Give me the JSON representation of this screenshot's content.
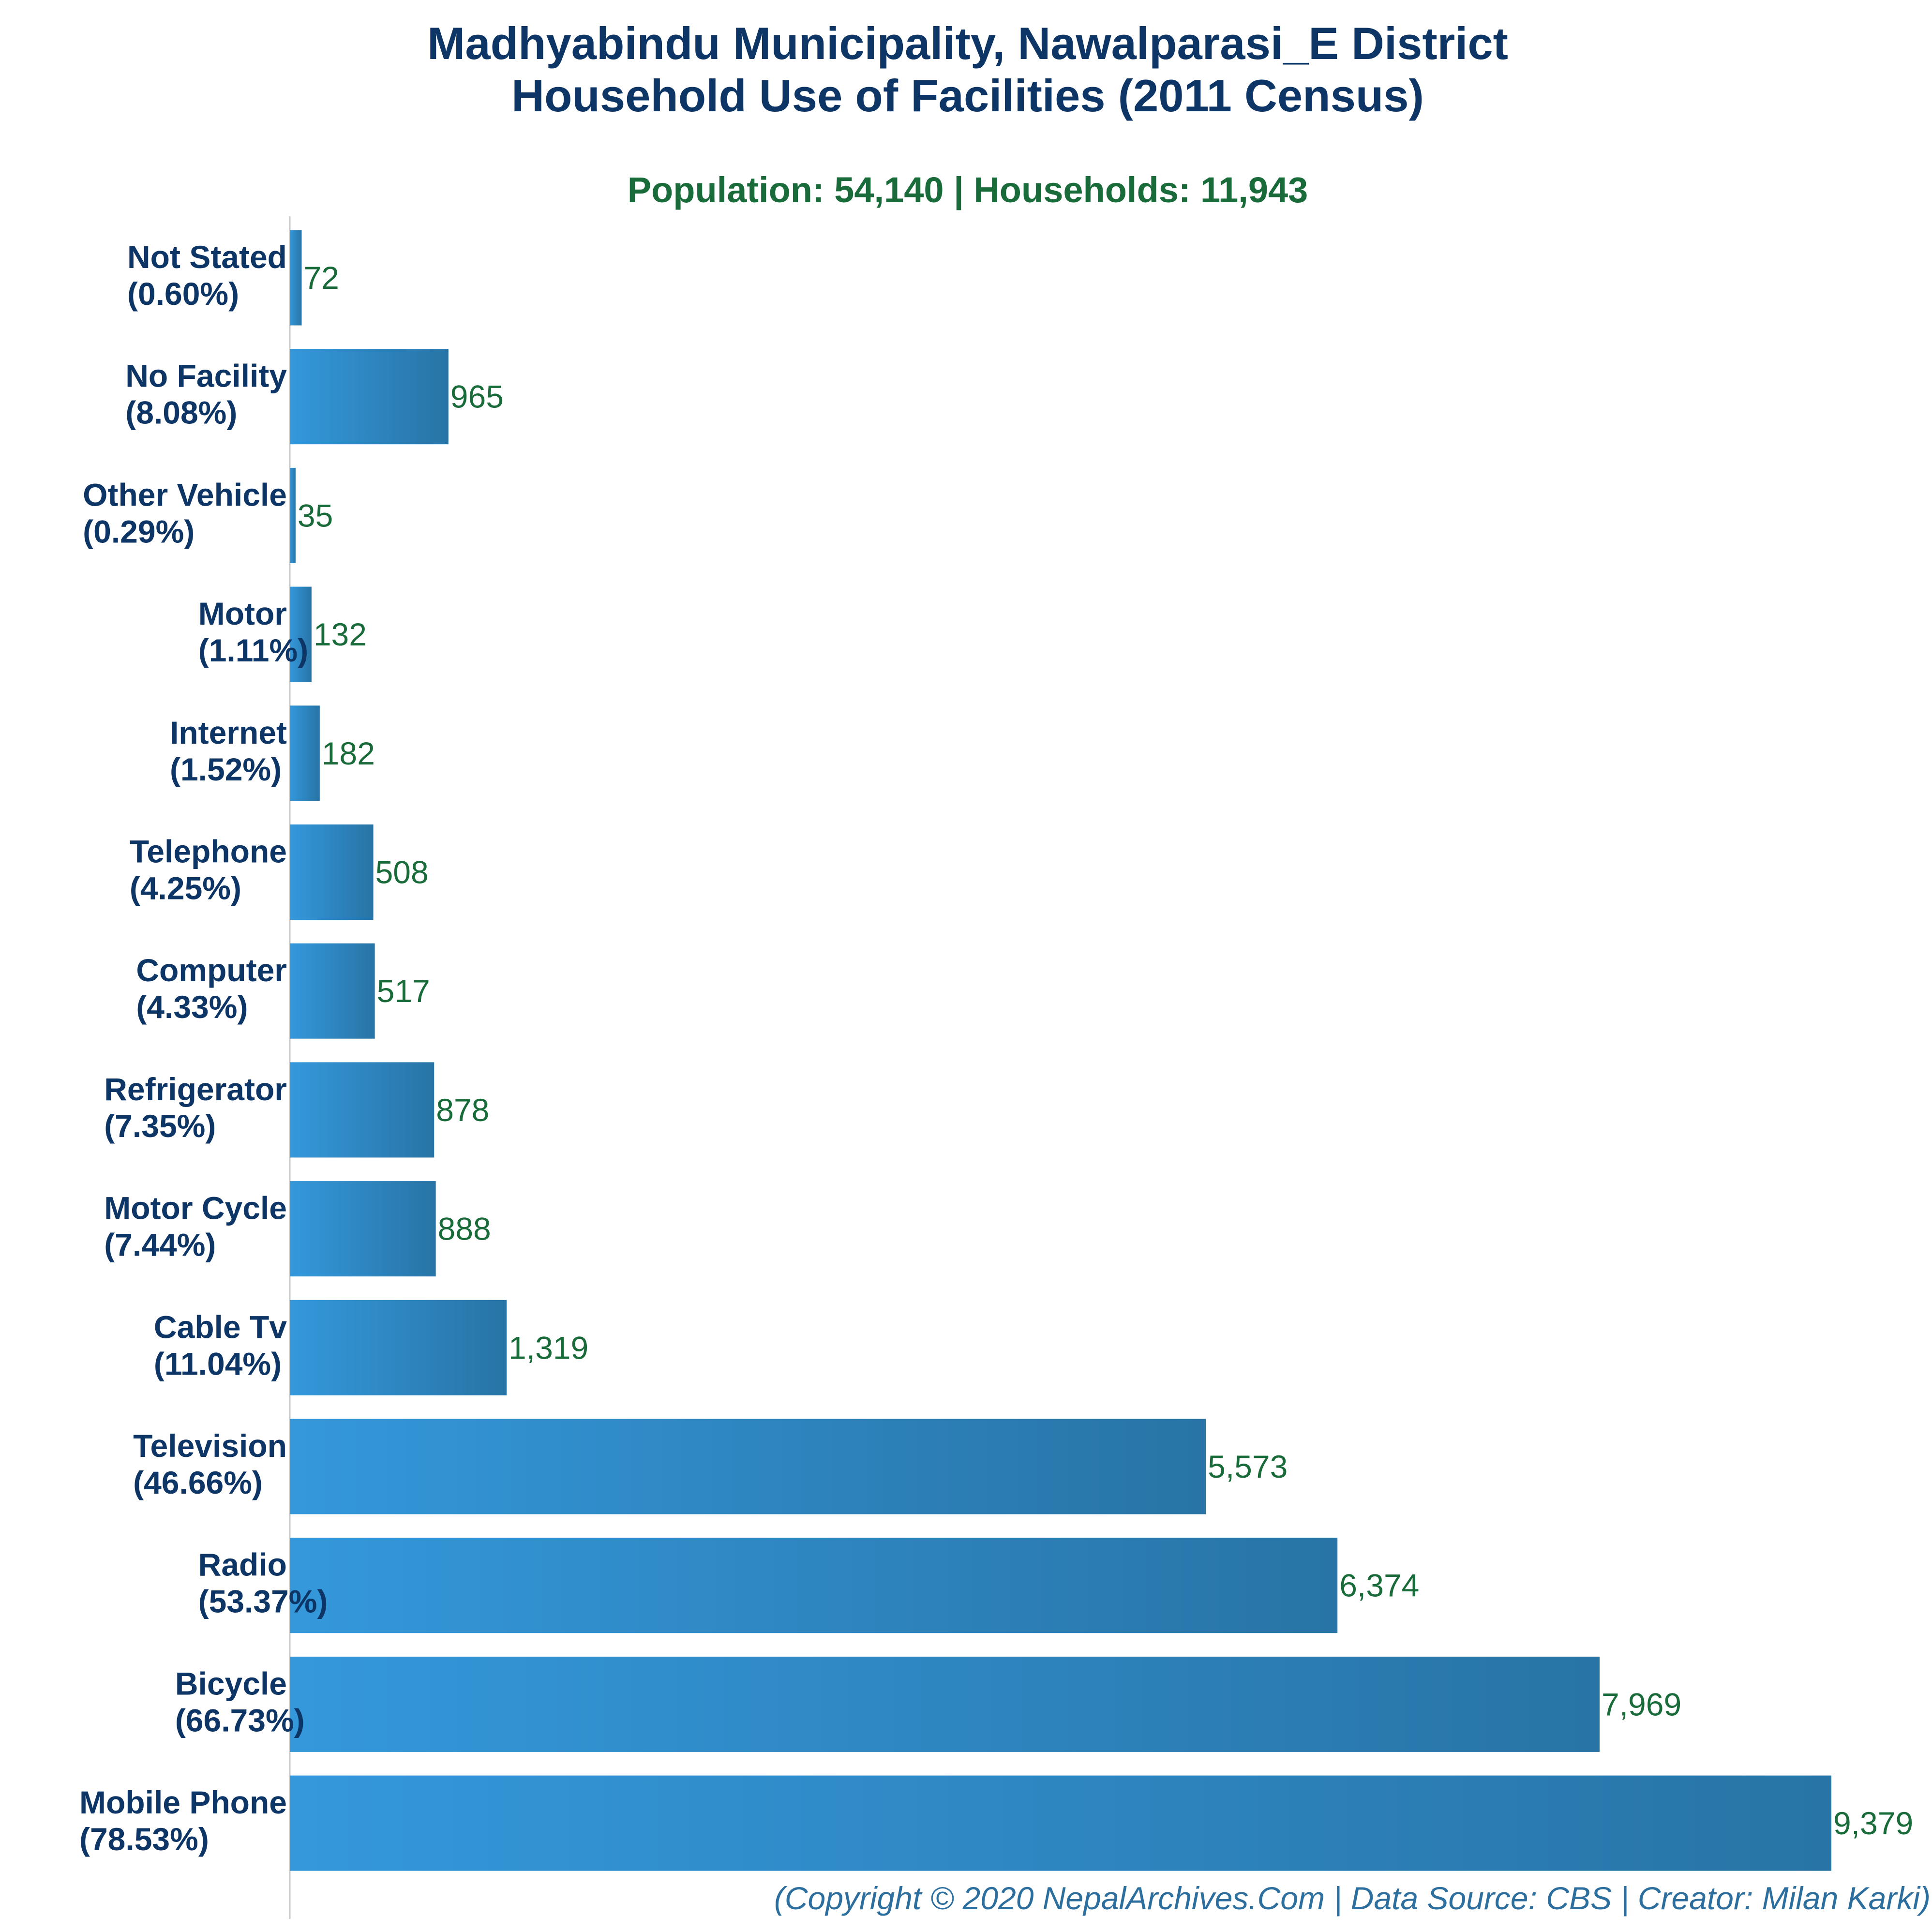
{
  "chart_data": {
    "type": "bar",
    "orientation": "horizontal",
    "title_line1": "Madhyabindu Municipality, Nawalparasi_E District",
    "title_line2": "Household Use of Facilities (2011 Census)",
    "subtitle": "Population: 54,140 | Households: 11,943",
    "footer": "(Copyright © 2020 NepalArchives.Com | Data Source: CBS | Creator: Milan Karki)",
    "xlim": [
      0,
      9379
    ],
    "grid": false,
    "bar_color_start": "#3498db",
    "bar_color_end": "#2874a6",
    "title_color": "#0d3566",
    "value_color": "#1a6b3a",
    "footer_color": "#2c6e9e",
    "categories": [
      {
        "name": "Not Stated",
        "percent": "(0.60%)",
        "value": 72,
        "value_label": "72"
      },
      {
        "name": "No Facility",
        "percent": "(8.08%)",
        "value": 965,
        "value_label": "965"
      },
      {
        "name": "Other Vehicle",
        "percent": "(0.29%)",
        "value": 35,
        "value_label": "35"
      },
      {
        "name": "Motor",
        "percent": "(1.11%)",
        "value": 132,
        "value_label": "132"
      },
      {
        "name": "Internet",
        "percent": "(1.52%)",
        "value": 182,
        "value_label": "182"
      },
      {
        "name": "Telephone",
        "percent": "(4.25%)",
        "value": 508,
        "value_label": "508"
      },
      {
        "name": "Computer",
        "percent": "(4.33%)",
        "value": 517,
        "value_label": "517"
      },
      {
        "name": "Refrigerator",
        "percent": "(7.35%)",
        "value": 878,
        "value_label": "878"
      },
      {
        "name": "Motor Cycle",
        "percent": "(7.44%)",
        "value": 888,
        "value_label": "888"
      },
      {
        "name": "Cable Tv",
        "percent": "(11.04%)",
        "value": 1319,
        "value_label": "1,319"
      },
      {
        "name": "Television",
        "percent": "(46.66%)",
        "value": 5573,
        "value_label": "5,573"
      },
      {
        "name": "Radio",
        "percent": "(53.37%)",
        "value": 6374,
        "value_label": "6,374"
      },
      {
        "name": "Bicycle",
        "percent": "(66.73%)",
        "value": 7969,
        "value_label": "7,969"
      },
      {
        "name": "Mobile Phone",
        "percent": "(78.53%)",
        "value": 9379,
        "value_label": "9,379"
      }
    ]
  }
}
